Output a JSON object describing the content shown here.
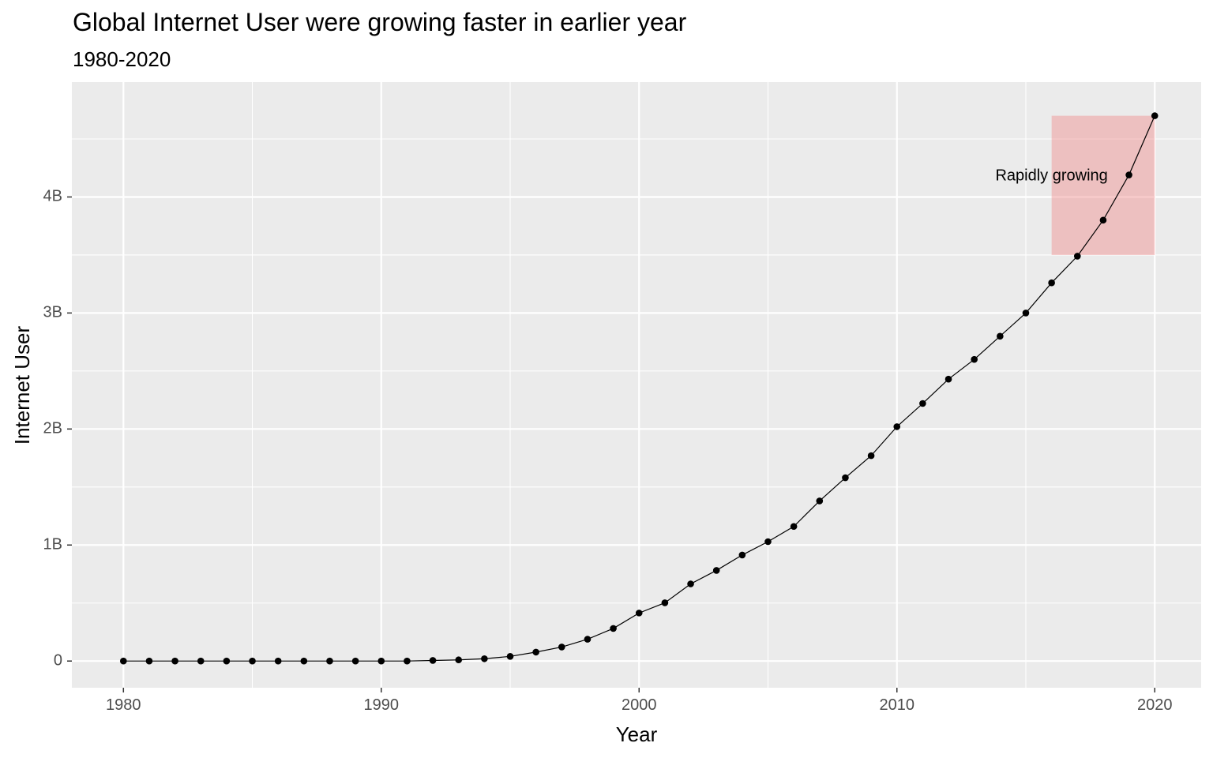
{
  "chart_data": {
    "type": "line",
    "title": "Global Internet User were growing faster in earlier year",
    "subtitle": "1980-2020",
    "xlabel": "Year",
    "ylabel": "Internet User",
    "xlim": [
      1978,
      2021.8
    ],
    "ylim": [
      -230000000,
      4990000000
    ],
    "x_ticks": [
      1980,
      1990,
      2000,
      2010,
      2020
    ],
    "x_tick_labels": [
      "1980",
      "1990",
      "2000",
      "2010",
      "2020"
    ],
    "y_ticks": [
      0,
      1000000000,
      2000000000,
      3000000000,
      4000000000
    ],
    "y_tick_labels": [
      "0",
      "1B",
      "2B",
      "3B",
      "4B"
    ],
    "grid": true,
    "series": [
      {
        "x": [
          1980,
          1981,
          1982,
          1983,
          1984,
          1985,
          1986,
          1987,
          1988,
          1989,
          1990,
          1991,
          1992,
          1993,
          1994,
          1995,
          1996,
          1997,
          1998,
          1999,
          2000,
          2001,
          2002,
          2003,
          2004,
          2005,
          2006,
          2007,
          2008,
          2009,
          2010,
          2011,
          2012,
          2013,
          2014,
          2015,
          2016,
          2017,
          2018,
          2019,
          2020
        ],
        "y": [
          0,
          0,
          0,
          0,
          0,
          0,
          0,
          0,
          0,
          0,
          0,
          0,
          5000000,
          10000000,
          20000000,
          40000000,
          77000000,
          121000000,
          188000000,
          281000000,
          414000000,
          502000000,
          665000000,
          781000000,
          914000000,
          1029000000,
          1160000000,
          1380000000,
          1580000000,
          1770000000,
          2020000000,
          2220000000,
          2430000000,
          2600000000,
          2800000000,
          3000000000,
          3260000000,
          3490000000,
          3800000000,
          4190000000,
          4700000000
        ]
      }
    ],
    "annotations": [
      {
        "type": "rect",
        "xmin": 2016,
        "xmax": 2020,
        "ymin": 3500000000,
        "ymax": 4700000000,
        "fill": "#f08080",
        "opacity": 0.4
      },
      {
        "type": "text",
        "label": "Rapidly growing",
        "x": 2016,
        "y": 4180000000
      }
    ],
    "colors": {
      "panel_background": "#ebebeb",
      "grid": "#ffffff",
      "line": "#000000",
      "point": "#000000",
      "highlight": "#f08080"
    }
  }
}
